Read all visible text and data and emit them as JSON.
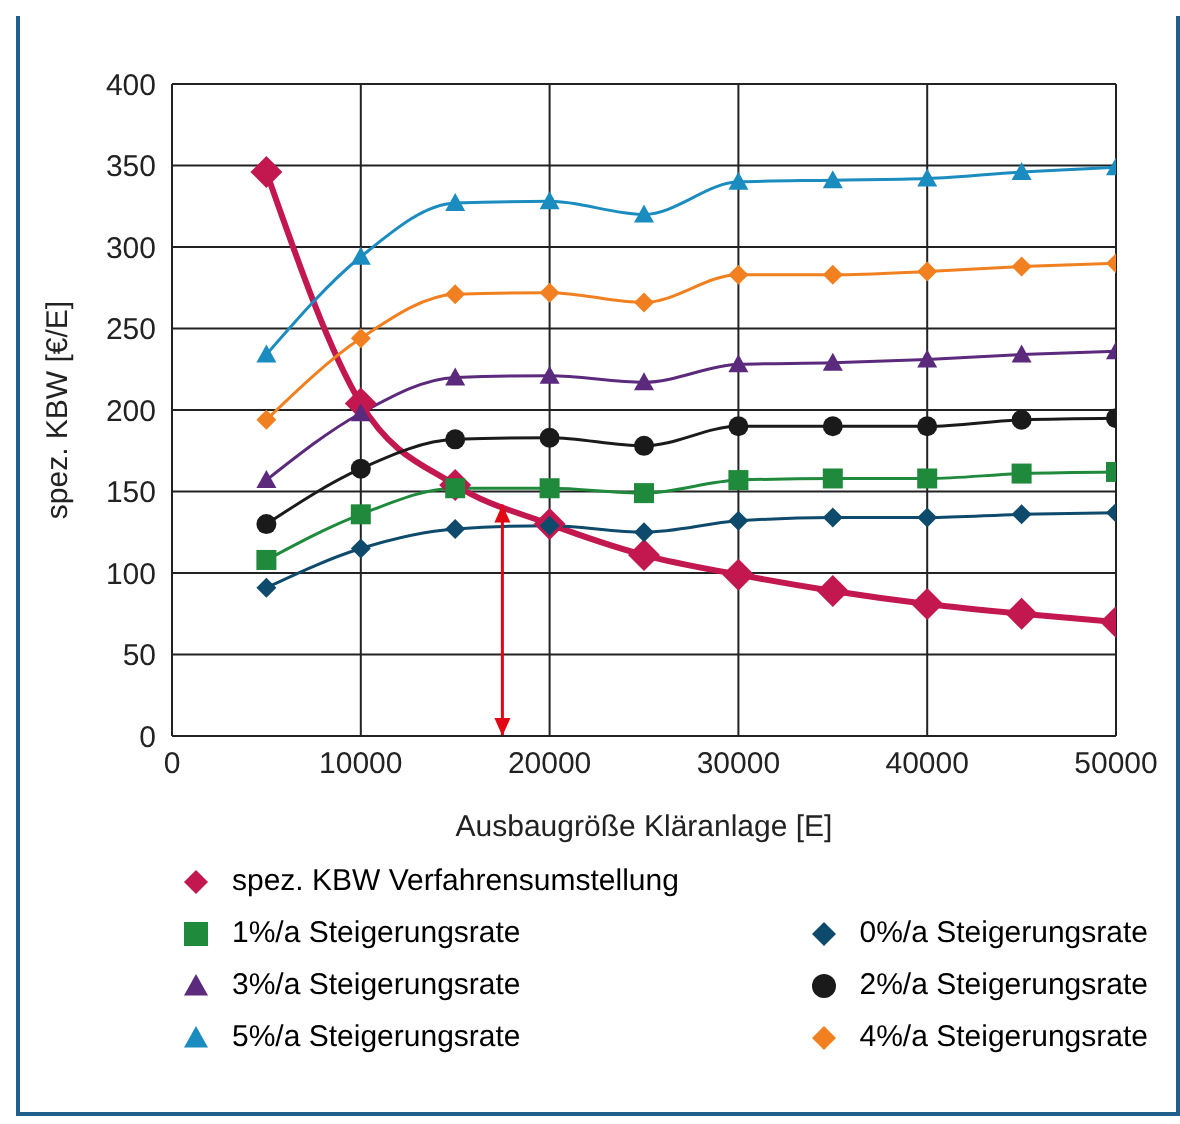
{
  "chart_data": {
    "type": "line",
    "xlabel": "Ausbaugröße Kläranlage [E]",
    "ylabel": "spez. KBW [€/E]",
    "x": [
      5000,
      10000,
      15000,
      20000,
      25000,
      30000,
      35000,
      40000,
      45000,
      50000
    ],
    "series": [
      {
        "name": "spez. KBW Verfahrensumstellung",
        "color": "#c3174f",
        "marker": "diamond",
        "values": [
          346,
          204,
          154,
          130,
          111,
          99,
          89,
          81,
          75,
          70
        ]
      },
      {
        "name": "1%/a Steigerungsrate",
        "color": "#1f8a3b",
        "marker": "square",
        "values": [
          108,
          136,
          152,
          152,
          149,
          157,
          158,
          158,
          161,
          162
        ]
      },
      {
        "name": "0%/a Steigerungsrate",
        "color": "#0e4a6b",
        "marker": "diamond",
        "values": [
          91,
          115,
          127,
          129,
          125,
          132,
          134,
          134,
          136,
          137
        ]
      },
      {
        "name": "3%/a Steigerungsrate",
        "color": "#5b2a7c",
        "marker": "triangle",
        "values": [
          157,
          198,
          220,
          221,
          217,
          228,
          229,
          231,
          234,
          236
        ]
      },
      {
        "name": "2%/a Steigerungsrate",
        "color": "#1a1a1a",
        "marker": "circle",
        "values": [
          130,
          164,
          182,
          183,
          178,
          190,
          190,
          190,
          194,
          195
        ]
      },
      {
        "name": "5%/a Steigerungsrate",
        "color": "#1b8cc0",
        "marker": "triangle",
        "values": [
          234,
          294,
          327,
          328,
          320,
          340,
          341,
          342,
          346,
          349
        ]
      },
      {
        "name": "4%/a Steigerungsrate",
        "color": "#f08020",
        "marker": "diamond",
        "values": [
          194,
          244,
          271,
          272,
          266,
          283,
          283,
          285,
          288,
          290
        ]
      }
    ],
    "xlim": [
      0,
      50000
    ],
    "xticks": [
      0,
      10000,
      20000,
      30000,
      40000,
      50000
    ],
    "ylim": [
      0,
      400
    ],
    "yticks": [
      0,
      50,
      100,
      150,
      200,
      250,
      300,
      350,
      400
    ],
    "ref_lines": [
      {
        "axis": "x",
        "value": 17500,
        "color": "#e30613"
      }
    ],
    "grid": true,
    "legend": "bottom"
  }
}
